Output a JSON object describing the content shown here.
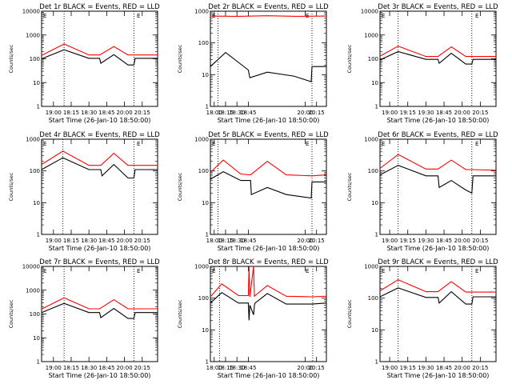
{
  "figure": {
    "start_time_label": "Start Time (26-Jan-10 18:50:00)",
    "y_label": "Counts/sec",
    "legend_glyph": "E"
  },
  "chart_data": [
    {
      "type": "line",
      "title": "Det 1r BLACK = Events, RED = LLD",
      "xlabel": "Start Time (26-Jan-10 18:50:00)",
      "ylabel": "Counts/sec",
      "yscale": "log",
      "ylim": [
        1,
        10000
      ],
      "ytick_labels": [
        "10000",
        "1000",
        "100",
        "10",
        "1"
      ],
      "xlim": [
        "18:50",
        "20:28"
      ],
      "xtick_labels": [
        {
          "t": "19:00",
          "label": "19:00"
        },
        {
          "t": "19:15",
          "label": "18:15"
        },
        {
          "t": "19:30",
          "label": "18:30"
        },
        {
          "t": "19:45",
          "label": "18:45"
        },
        {
          "t": "20:00",
          "label": "20:00"
        },
        {
          "t": "20:15",
          "label": "20:15"
        }
      ],
      "vlines": [
        "19:09",
        "20:08"
      ],
      "series": [
        {
          "color": "#ff0000",
          "x": [
            "18:50",
            "19:09",
            "19:30",
            "19:39",
            "19:51",
            "20:03",
            "20:08",
            "20:28"
          ],
          "y": [
            140,
            420,
            145,
            145,
            330,
            145,
            145,
            145
          ]
        },
        {
          "color": "#000000",
          "x": [
            "18:50",
            "19:09",
            "19:30",
            "19:39",
            "19:40",
            "19:51",
            "20:03",
            "20:08",
            "20:09",
            "20:28"
          ],
          "y": [
            100,
            240,
            105,
            105,
            65,
            150,
            55,
            55,
            105,
            105
          ]
        }
      ]
    },
    {
      "type": "line",
      "title": "Det 2r BLACK = Events, RED = LLD",
      "xlabel": "Start Time (26-Jan-10 18:50:00)",
      "ylabel": "Counts/sec",
      "yscale": "log",
      "ylim": [
        1,
        1000
      ],
      "ytick_labels": [
        "1000",
        "100",
        "10",
        "1"
      ],
      "xlim": [
        "17:55",
        "20:28"
      ],
      "xtick_labels": [
        {
          "t": "18:00",
          "label": "18:00"
        },
        {
          "t": "18:15",
          "label": "18:15"
        },
        {
          "t": "18:30",
          "label": "18:30"
        },
        {
          "t": "18:45",
          "label": "18:45"
        },
        {
          "t": "20:00",
          "label": "20:00"
        },
        {
          "t": "20:15",
          "label": "20:15"
        }
      ],
      "vlines": [
        "18:05",
        "20:09"
      ],
      "series": [
        {
          "color": "#ff0000",
          "x": [
            "17:55",
            "18:30",
            "19:10",
            "19:50",
            "20:28"
          ],
          "y": [
            700,
            690,
            720,
            690,
            700
          ]
        },
        {
          "color": "#000000",
          "x": [
            "17:55",
            "18:15",
            "18:45",
            "18:47",
            "19:10",
            "19:45",
            "20:08",
            "20:09",
            "20:28"
          ],
          "y": [
            18,
            50,
            14,
            8,
            12,
            9,
            6,
            18,
            18
          ]
        }
      ]
    },
    {
      "type": "line",
      "title": "Det 3r BLACK = Events, RED = LLD",
      "xlabel": "Start Time (26-Jan-10 18:50:00)",
      "ylabel": "Counts/sec",
      "yscale": "log",
      "ylim": [
        1,
        10000
      ],
      "ytick_labels": [
        "10000",
        "1000",
        "100",
        "10",
        "1"
      ],
      "xlim": [
        "18:52",
        "20:28"
      ],
      "xtick_labels": [
        {
          "t": "19:00",
          "label": "19:00"
        },
        {
          "t": "19:15",
          "label": "19:15"
        },
        {
          "t": "19:30",
          "label": "19:30"
        },
        {
          "t": "19:45",
          "label": "18:45"
        },
        {
          "t": "20:00",
          "label": "20:00"
        },
        {
          "t": "20:15",
          "label": "20:15"
        }
      ],
      "vlines": [
        "19:07",
        "20:08"
      ],
      "series": [
        {
          "color": "#ff0000",
          "x": [
            "18:52",
            "19:07",
            "19:30",
            "19:40",
            "19:51",
            "20:03",
            "20:08",
            "20:28"
          ],
          "y": [
            130,
            340,
            125,
            125,
            320,
            125,
            125,
            125
          ]
        },
        {
          "color": "#000000",
          "x": [
            "18:52",
            "19:07",
            "19:30",
            "19:40",
            "19:41",
            "19:51",
            "20:03",
            "20:08",
            "20:09",
            "20:28"
          ],
          "y": [
            90,
            200,
            95,
            95,
            65,
            170,
            60,
            60,
            95,
            95
          ]
        }
      ]
    },
    {
      "type": "line",
      "title": "Det 4r BLACK = Events, RED = LLD",
      "xlabel": "Start Time (26-Jan-10 18:50:00)",
      "ylabel": "Counts/sec",
      "yscale": "log",
      "ylim": [
        1,
        1000
      ],
      "ytick_labels": [
        "1000",
        "100",
        "10",
        "1"
      ],
      "xlim": [
        "18:50",
        "20:28"
      ],
      "xtick_labels": [
        {
          "t": "19:00",
          "label": "19:00"
        },
        {
          "t": "19:15",
          "label": "18:15"
        },
        {
          "t": "19:30",
          "label": "18:30"
        },
        {
          "t": "19:45",
          "label": "18:45"
        },
        {
          "t": "20:00",
          "label": "20:00"
        },
        {
          "t": "20:15",
          "label": "20:15"
        }
      ],
      "vlines": [
        "19:08",
        "20:08"
      ],
      "series": [
        {
          "color": "#ff0000",
          "x": [
            "18:50",
            "19:08",
            "19:30",
            "19:40",
            "19:51",
            "20:03",
            "20:08",
            "20:28"
          ],
          "y": [
            160,
            420,
            150,
            150,
            360,
            150,
            150,
            150
          ]
        },
        {
          "color": "#000000",
          "x": [
            "18:50",
            "19:08",
            "19:30",
            "19:40",
            "19:41",
            "19:51",
            "20:03",
            "20:08",
            "20:09",
            "20:28"
          ],
          "y": [
            110,
            260,
            110,
            110,
            70,
            160,
            60,
            60,
            110,
            110
          ]
        }
      ]
    },
    {
      "type": "line",
      "title": "Det 5r BLACK = Events, RED = LLD",
      "xlabel": "Start Time (26-Jan-10 18:50:00)",
      "ylabel": "Counts/sec",
      "yscale": "log",
      "ylim": [
        1,
        1000
      ],
      "ytick_labels": [
        "1000",
        "100",
        "10",
        "1"
      ],
      "xlim": [
        "17:55",
        "20:28"
      ],
      "xtick_labels": [
        {
          "t": "18:00",
          "label": "18:00"
        },
        {
          "t": "18:15",
          "label": "18:15"
        },
        {
          "t": "18:30",
          "label": "18:30"
        },
        {
          "t": "18:45",
          "label": "18:45"
        },
        {
          "t": "20:00",
          "label": "20:00"
        },
        {
          "t": "20:15",
          "label": "20:15"
        }
      ],
      "vlines": [
        "18:05",
        "20:09"
      ],
      "series": [
        {
          "color": "#ff0000",
          "x": [
            "17:55",
            "18:12",
            "18:35",
            "18:48",
            "19:10",
            "19:35",
            "20:09",
            "20:28"
          ],
          "y": [
            90,
            220,
            80,
            75,
            200,
            75,
            70,
            75
          ]
        },
        {
          "color": "#000000",
          "x": [
            "17:55",
            "18:12",
            "18:35",
            "18:48",
            "18:49",
            "19:10",
            "19:35",
            "20:08",
            "20:09",
            "20:28"
          ],
          "y": [
            55,
            95,
            50,
            50,
            18,
            30,
            18,
            14,
            45,
            45
          ]
        }
      ]
    },
    {
      "type": "line",
      "title": "Det 6r BLACK = Events, RED = LLD",
      "xlabel": "Start Time (26-Jan-10 18:50:00)",
      "ylabel": "Counts/sec",
      "yscale": "log",
      "ylim": [
        1,
        1000
      ],
      "ytick_labels": [
        "1000",
        "100",
        "10",
        "1"
      ],
      "xlim": [
        "18:52",
        "20:28"
      ],
      "xtick_labels": [
        {
          "t": "19:00",
          "label": "19:00"
        },
        {
          "t": "19:15",
          "label": "19:15"
        },
        {
          "t": "19:30",
          "label": "19:30"
        },
        {
          "t": "19:45",
          "label": "18:45"
        },
        {
          "t": "20:00",
          "label": "20:00"
        },
        {
          "t": "20:15",
          "label": "20:15"
        }
      ],
      "vlines": [
        "19:07",
        "20:08"
      ],
      "series": [
        {
          "color": "#ff0000",
          "x": [
            "18:52",
            "19:07",
            "19:30",
            "19:40",
            "19:51",
            "20:03",
            "20:08",
            "20:28"
          ],
          "y": [
            120,
            330,
            115,
            115,
            220,
            110,
            110,
            105
          ]
        },
        {
          "color": "#000000",
          "x": [
            "18:52",
            "19:07",
            "19:30",
            "19:40",
            "19:41",
            "19:51",
            "20:03",
            "20:08",
            "20:09",
            "20:28"
          ],
          "y": [
            75,
            150,
            70,
            70,
            30,
            50,
            25,
            20,
            70,
            70
          ]
        }
      ]
    },
    {
      "type": "line",
      "title": "Det 7r BLACK = Events, RED = LLD",
      "xlabel": "Start Time (26-Jan-10 18:50:00)",
      "ylabel": "Counts/sec",
      "yscale": "log",
      "ylim": [
        1,
        10000
      ],
      "ytick_labels": [
        "10000",
        "1000",
        "100",
        "10",
        "1"
      ],
      "xlim": [
        "18:50",
        "20:28"
      ],
      "xtick_labels": [
        {
          "t": "19:00",
          "label": "19:00"
        },
        {
          "t": "19:15",
          "label": "18:15"
        },
        {
          "t": "19:30",
          "label": "18:30"
        },
        {
          "t": "19:45",
          "label": "18:45"
        },
        {
          "t": "20:00",
          "label": "20:00"
        },
        {
          "t": "20:15",
          "label": "20:15"
        }
      ],
      "vlines": [
        "19:09",
        "20:08"
      ],
      "series": [
        {
          "color": "#ff0000",
          "x": [
            "18:50",
            "19:09",
            "19:30",
            "19:39",
            "19:51",
            "20:03",
            "20:08",
            "20:28"
          ],
          "y": [
            160,
            480,
            165,
            165,
            400,
            165,
            165,
            165
          ]
        },
        {
          "color": "#000000",
          "x": [
            "18:50",
            "19:09",
            "19:30",
            "19:39",
            "19:40",
            "19:51",
            "20:03",
            "20:08",
            "20:09",
            "20:28"
          ],
          "y": [
            115,
            280,
            115,
            115,
            70,
            170,
            65,
            65,
            115,
            115
          ]
        }
      ]
    },
    {
      "type": "line",
      "title": "Det 8r BLACK = Events, RED = LLD",
      "xlabel": "Start Time (26-Jan-10 18:50:00)",
      "ylabel": "Counts/sec",
      "yscale": "log",
      "ylim": [
        1,
        1000
      ],
      "ytick_labels": [
        "1000",
        "100",
        "10",
        "1"
      ],
      "xlim": [
        "17:55",
        "20:28"
      ],
      "xtick_labels": [
        {
          "t": "18:00",
          "label": "18:00"
        },
        {
          "t": "18:15",
          "label": "18:15"
        },
        {
          "t": "18:30",
          "label": "18:30"
        },
        {
          "t": "18:45",
          "label": "18:45"
        },
        {
          "t": "20:00",
          "label": "20:00"
        },
        {
          "t": "20:15",
          "label": "20:15"
        }
      ],
      "vlines": [
        "18:07",
        "20:10"
      ],
      "series": [
        {
          "color": "#ff0000",
          "x": [
            "17:55",
            "18:10",
            "18:32",
            "18:45",
            "18:46",
            "18:47",
            "18:52",
            "18:53",
            "18:54",
            "19:10",
            "19:35",
            "20:09",
            "20:28"
          ],
          "y": [
            110,
            280,
            120,
            120,
            1000,
            110,
            1000,
            115,
            120,
            250,
            115,
            110,
            115
          ]
        },
        {
          "color": "#000000",
          "x": [
            "17:55",
            "18:10",
            "18:32",
            "18:45",
            "18:46",
            "18:47",
            "18:52",
            "18:53",
            "18:54",
            "19:10",
            "19:35",
            "20:09",
            "20:28"
          ],
          "y": [
            70,
            150,
            70,
            70,
            20,
            60,
            30,
            60,
            70,
            140,
            65,
            65,
            70
          ]
        }
      ]
    },
    {
      "type": "line",
      "title": "Det 9r BLACK = Events, RED = LLD",
      "xlabel": "Start Time (26-Jan-10 18:50:00)",
      "ylabel": "Counts/sec",
      "yscale": "log",
      "ylim": [
        1,
        1000
      ],
      "ytick_labels": [
        "1000",
        "100",
        "10",
        "1"
      ],
      "xlim": [
        "18:52",
        "20:28"
      ],
      "xtick_labels": [
        {
          "t": "19:00",
          "label": "19:00"
        },
        {
          "t": "19:15",
          "label": "19:15"
        },
        {
          "t": "19:30",
          "label": "19:30"
        },
        {
          "t": "19:45",
          "label": "18:45"
        },
        {
          "t": "20:00",
          "label": "20:00"
        },
        {
          "t": "20:15",
          "label": "20:15"
        }
      ],
      "vlines": [
        "19:07",
        "20:08"
      ],
      "series": [
        {
          "color": "#ff0000",
          "x": [
            "18:52",
            "19:07",
            "19:30",
            "19:40",
            "19:51",
            "20:03",
            "20:08",
            "20:28"
          ],
          "y": [
            170,
            380,
            160,
            160,
            330,
            155,
            155,
            155
          ]
        },
        {
          "color": "#000000",
          "x": [
            "18:52",
            "19:07",
            "19:30",
            "19:40",
            "19:41",
            "19:51",
            "20:03",
            "20:08",
            "20:09",
            "20:28"
          ],
          "y": [
            110,
            210,
            105,
            105,
            70,
            160,
            65,
            65,
            110,
            110
          ]
        }
      ]
    }
  ]
}
